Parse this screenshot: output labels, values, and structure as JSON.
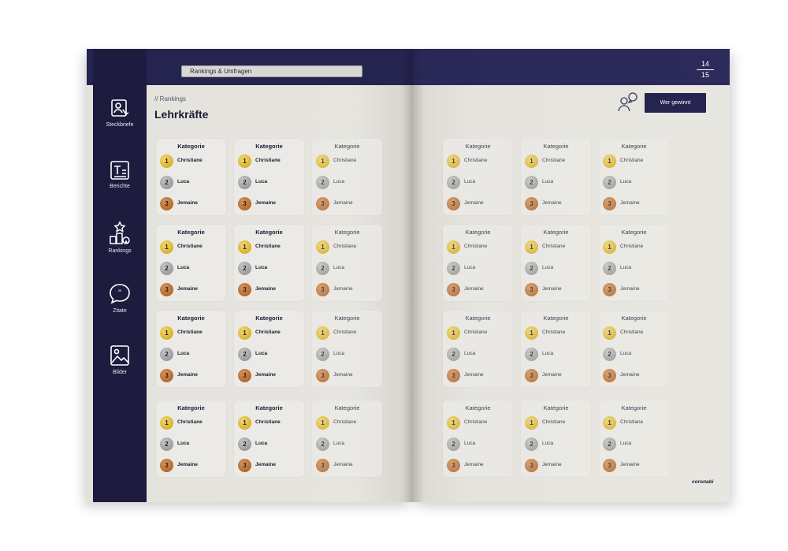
{
  "header": {
    "section_title": "Rankings & Umfragen"
  },
  "sidebar": {
    "items": [
      {
        "label": "Steckbriefe",
        "icon": "profile-card-icon"
      },
      {
        "label": "Berichte",
        "icon": "text-document-icon"
      },
      {
        "label": "Rankings",
        "icon": "podium-icon"
      },
      {
        "label": "Zitate",
        "icon": "quote-bubble-icon"
      },
      {
        "label": "Bilder",
        "icon": "image-icon"
      }
    ]
  },
  "main": {
    "breadcrumb": "// Rankings",
    "title": "Lehrkräfte"
  },
  "card": {
    "title": "Kategorie",
    "ranks": [
      {
        "place": "1",
        "name": "Christiane"
      },
      {
        "place": "2",
        "name": "Luca"
      },
      {
        "place": "3",
        "name": "Jemaine"
      }
    ]
  },
  "right_page": {
    "page_current": "14",
    "page_total": "15",
    "cta_label": "Wer gewinnt",
    "brand": "coronabi"
  },
  "colors": {
    "navy": "#25234f",
    "gold": "#d9b12a",
    "silver": "#9a9a9a",
    "bronze": "#b4692a"
  }
}
